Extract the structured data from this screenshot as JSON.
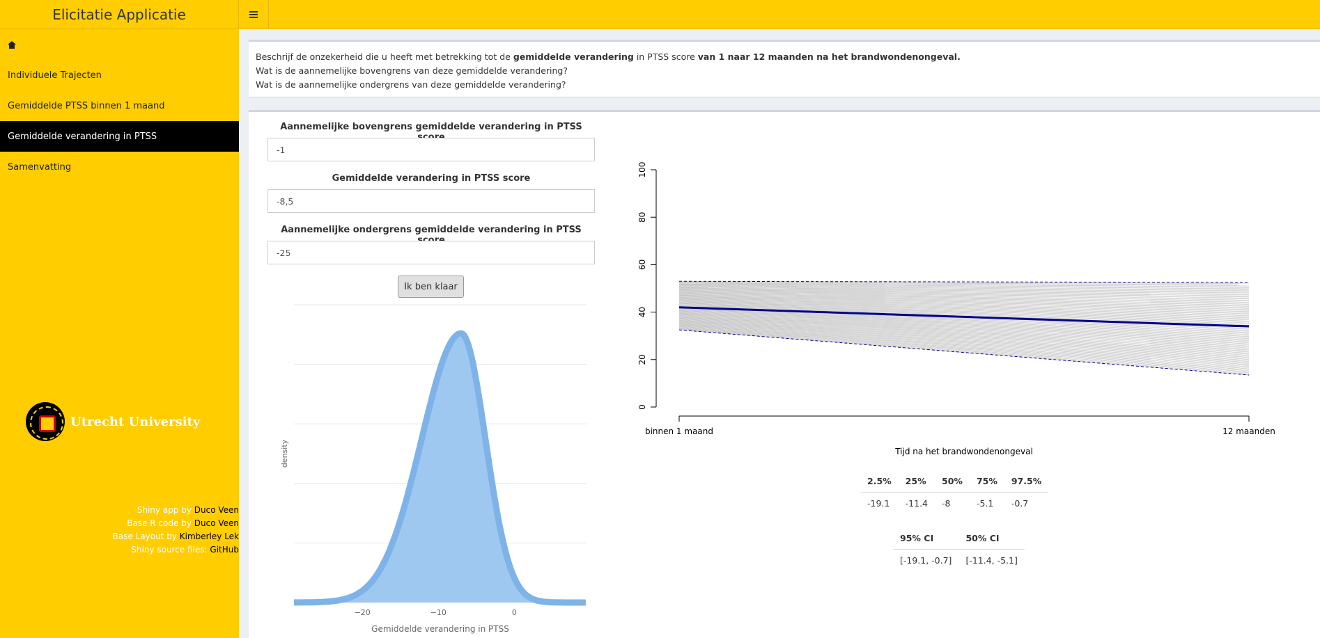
{
  "header": {
    "title": "Elicitatie Applicatie"
  },
  "sidebar": {
    "items": [
      {
        "label": ""
      },
      {
        "label": "Individuele Trajecten"
      },
      {
        "label": "Gemiddelde PTSS binnen 1 maand"
      },
      {
        "label": "Gemiddelde verandering in PTSS"
      },
      {
        "label": "Samenvatting"
      }
    ],
    "active_index": 3,
    "logo_text": "Utrecht University",
    "credits": [
      {
        "prefix": "Shiny app by ",
        "link": "Duco Veen"
      },
      {
        "prefix": "Base R code by ",
        "link": "Duco Veen"
      },
      {
        "prefix": "Base Layout by ",
        "link": "Kimberley Lek"
      },
      {
        "prefix": "Shiny source files: ",
        "link": "GitHub"
      }
    ]
  },
  "question": {
    "line1_a": "Beschrijf de onzekerheid die u heeft met betrekking tot de ",
    "line1_b": "gemiddelde verandering",
    "line1_c": " in PTSS score ",
    "line1_d": "van 1 naar 12 maanden na het brandwondenongeval.",
    "line2": "Wat is de aannemelijke bovengrens van deze gemiddelde verandering?",
    "line3": "Wat is de aannemelijke ondergrens van deze gemiddelde verandering?"
  },
  "form": {
    "upper_label": "Aannemelijke bovengrens gemiddelde verandering in PTSS score",
    "upper_value": "-1",
    "mean_label": "Gemiddelde verandering in PTSS score",
    "mean_value": "-8,5",
    "lower_label": "Aannemelijke ondergrens gemiddelde verandering in PTSS score",
    "lower_value": "-25",
    "button": "Ik ben klaar"
  },
  "chart_data": [
    {
      "type": "area",
      "title": "",
      "xlabel": "Gemiddelde verandering in PTSS",
      "ylabel": "density",
      "xlim": [
        -29,
        9.5
      ],
      "x_ticks": [
        -20,
        -10,
        0
      ],
      "x_tick_labels": [
        "−20",
        "−10",
        "0"
      ],
      "y_grid_lines": 6,
      "distribution": {
        "mode": -7,
        "sd_left": 5.2,
        "sd_right": 3.2
      },
      "fill_color": "#9fc8f0",
      "line_color": "#7db3e8"
    },
    {
      "type": "line",
      "xlabel": "Tijd na het brandwondenongeval",
      "ylabel": "",
      "x_tick_labels": [
        "binnen 1 maand",
        "12 maanden"
      ],
      "ylim": [
        0,
        100
      ],
      "y_ticks": [
        0,
        20,
        40,
        60,
        80,
        100
      ],
      "mean_line": {
        "start": 42,
        "end": 34
      },
      "upper_bound": {
        "start": 53,
        "end": 52.5
      },
      "lower_bound": {
        "start": 32.5,
        "end": 13.5
      },
      "mean_color": "#00008b",
      "bound_color": "#00008b",
      "trajectory_color": "#888888"
    }
  ],
  "quantiles": {
    "headers": [
      "2.5%",
      "25%",
      "50%",
      "75%",
      "97.5%"
    ],
    "values": [
      "-19.1",
      "-11.4",
      "-8",
      "-5.1",
      "-0.7"
    ]
  },
  "intervals": {
    "headers": [
      "95% CI",
      "50% CI"
    ],
    "values": [
      "[-19.1, -0.7]",
      "[-11.4, -5.1]"
    ]
  }
}
